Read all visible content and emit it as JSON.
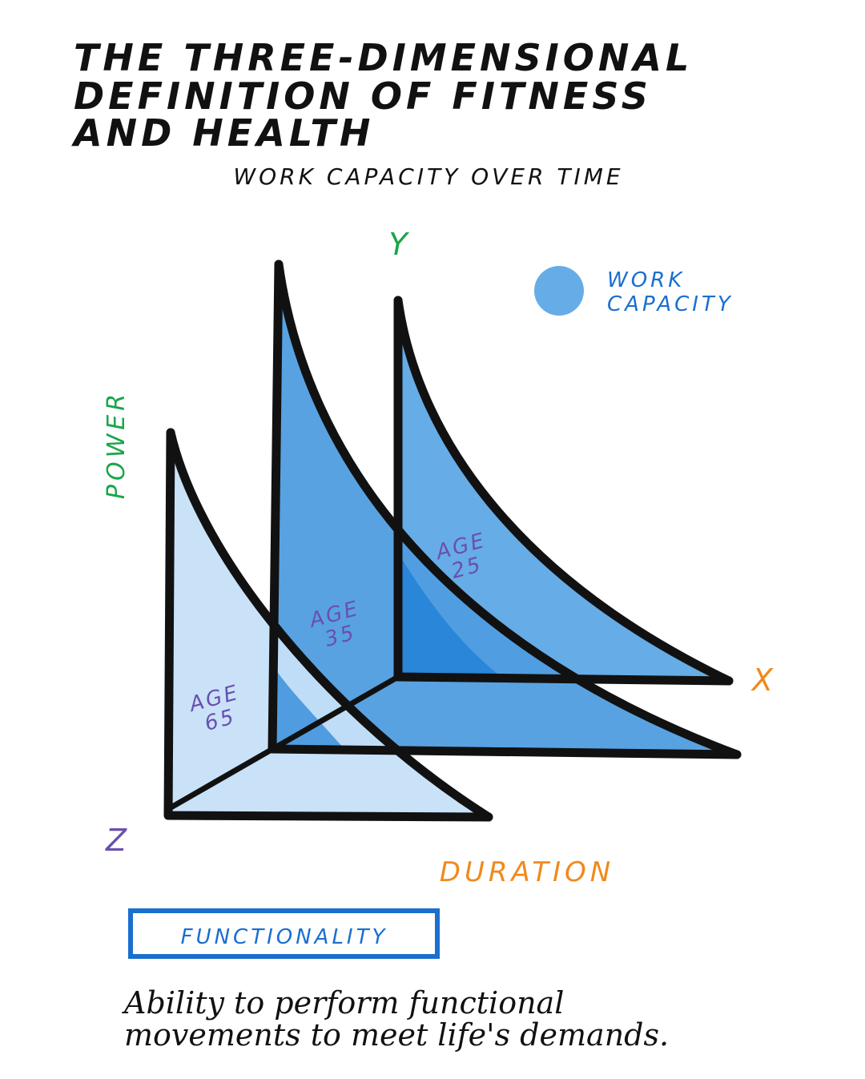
{
  "header": {
    "title_lines": [
      "THE THREE-DIMENSIONAL",
      "DEFINITION OF FITNESS",
      "AND HEALTH"
    ],
    "subtitle": "WORK CAPACITY OVER TIME"
  },
  "axes": {
    "y": "Y",
    "x": "X",
    "z": "Z",
    "power": "POWER",
    "duration": "DURATION"
  },
  "legend": {
    "label_lines": [
      "WORK",
      "CAPACITY"
    ]
  },
  "surfaces": [
    {
      "label": "AGE",
      "age": "25"
    },
    {
      "label": "AGE",
      "age": "35"
    },
    {
      "label": "AGE",
      "age": "65"
    }
  ],
  "definition": {
    "term": "FUNCTIONALITY",
    "text_lines": [
      "Ability to perform functional",
      "movements to meet life's demands."
    ]
  }
}
